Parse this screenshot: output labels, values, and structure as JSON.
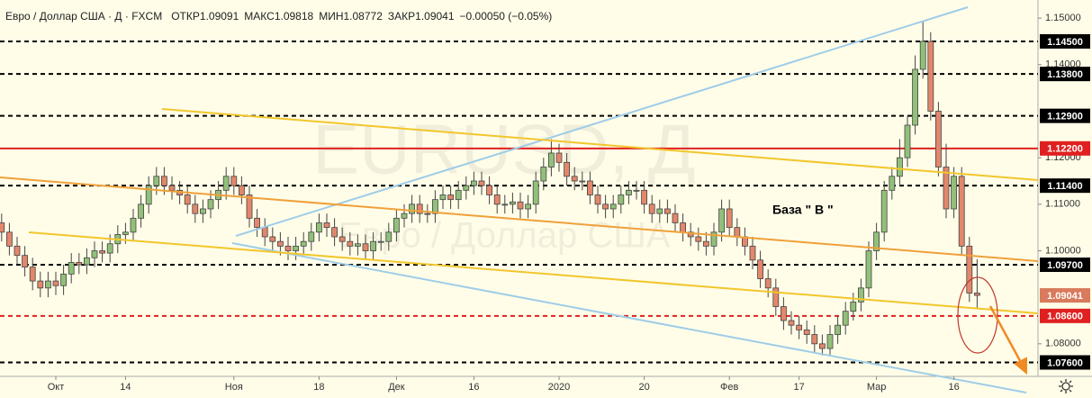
{
  "chart_data": {
    "type": "candlestick",
    "title": "Евро / Доллар США · Д · FXCM",
    "header": {
      "open_label": "ОТКР",
      "high_label": "МАКС",
      "low_label": "МИН",
      "close_label": "ЗАКР",
      "change": "−0.00050 (−0.05%)"
    },
    "watermark": "EURUSD, Д",
    "watermark_subtitle": "Евро / Доллар США",
    "annotation": "База \" В \"",
    "up_color": "#92c07a",
    "down_color": "#e2876c",
    "categories": [
      null,
      null,
      null,
      null,
      null,
      null,
      null,
      "Окт",
      null,
      null,
      null,
      null,
      null,
      null,
      null,
      null,
      "14",
      null,
      null,
      null,
      null,
      null,
      null,
      null,
      null,
      null,
      null,
      null,
      null,
      null,
      "Ноя",
      null,
      null,
      null,
      null,
      null,
      null,
      null,
      null,
      null,
      null,
      "18",
      null,
      null,
      null,
      null,
      null,
      null,
      null,
      null,
      null,
      "Дек",
      null,
      null,
      null,
      null,
      null,
      null,
      null,
      null,
      null,
      "16",
      null,
      null,
      null,
      null,
      null,
      null,
      null,
      null,
      null,
      null,
      "2020",
      null,
      null,
      null,
      null,
      null,
      null,
      null,
      null,
      null,
      null,
      "20",
      null,
      null,
      null,
      null,
      null,
      null,
      null,
      null,
      null,
      null,
      "Фев",
      null,
      null,
      null,
      null,
      null,
      null,
      null,
      null,
      "17",
      null,
      null,
      null,
      null,
      null,
      null,
      null,
      null,
      null,
      "Мар",
      null,
      null,
      null,
      null,
      null,
      null,
      null,
      null,
      null,
      "16",
      null,
      null,
      null
    ],
    "open": [
      1.106,
      1.104,
      1.101,
      1.099,
      1.0965,
      1.0935,
      1.092,
      1.0935,
      1.0925,
      1.095,
      1.0975,
      1.097,
      1.0985,
      1.1,
      1.0995,
      1.1015,
      1.1035,
      1.104,
      1.107,
      1.11,
      1.114,
      1.116,
      1.114,
      1.113,
      1.112,
      1.11,
      1.108,
      1.109,
      1.111,
      1.113,
      1.116,
      1.114,
      1.112,
      1.107,
      1.105,
      1.103,
      1.102,
      1.101,
      1.1,
      1.101,
      1.102,
      1.104,
      1.106,
      1.105,
      1.103,
      1.102,
      1.101,
      1.1015,
      1.1,
      1.102,
      1.102,
      1.104,
      1.107,
      1.108,
      1.11,
      1.108,
      1.108,
      1.111,
      1.112,
      1.111,
      1.113,
      1.114,
      1.115,
      1.114,
      1.112,
      1.11,
      1.11,
      1.1105,
      1.109,
      1.11,
      1.115,
      1.118,
      1.121,
      1.119,
      1.116,
      1.115,
      1.115,
      1.112,
      1.11,
      1.109,
      1.11,
      1.112,
      1.113,
      1.113,
      1.11,
      1.108,
      1.109,
      1.108,
      1.106,
      1.104,
      1.103,
      1.102,
      1.101,
      1.104,
      1.109,
      1.105,
      1.103,
      1.101,
      1.098,
      1.094,
      1.092,
      1.088,
      1.085,
      1.084,
      1.083,
      1.082,
      1.08,
      1.079,
      1.082,
      1.084,
      1.087,
      1.089,
      1.092,
      1.1,
      1.104,
      1.113,
      1.116,
      1.12,
      1.127,
      1.139,
      1.145,
      1.13,
      1.118,
      1.109,
      1.116,
      1.101,
      1.09091
    ],
    "high": [
      1.108,
      1.106,
      1.103,
      1.101,
      1.0985,
      1.0955,
      1.0955,
      1.0955,
      1.097,
      1.0995,
      1.0995,
      1.1005,
      1.102,
      1.102,
      1.1035,
      1.1055,
      1.106,
      1.109,
      1.112,
      1.116,
      1.118,
      1.118,
      1.116,
      1.115,
      1.114,
      1.112,
      1.111,
      1.113,
      1.115,
      1.118,
      1.118,
      1.116,
      1.114,
      1.109,
      1.107,
      1.105,
      1.104,
      1.103,
      1.103,
      1.104,
      1.106,
      1.108,
      1.108,
      1.107,
      1.105,
      1.104,
      1.1035,
      1.1035,
      1.104,
      1.104,
      1.106,
      1.109,
      1.11,
      1.112,
      1.112,
      1.11,
      1.113,
      1.114,
      1.114,
      1.115,
      1.116,
      1.117,
      1.117,
      1.116,
      1.114,
      1.112,
      1.1125,
      1.1125,
      1.112,
      1.117,
      1.12,
      1.124,
      1.123,
      1.121,
      1.118,
      1.117,
      1.117,
      1.114,
      1.112,
      1.112,
      1.114,
      1.115,
      1.115,
      1.115,
      1.112,
      1.111,
      1.111,
      1.11,
      1.108,
      1.106,
      1.105,
      1.104,
      1.106,
      1.111,
      1.111,
      1.107,
      1.105,
      1.103,
      1.1,
      1.096,
      1.094,
      1.09,
      1.087,
      1.086,
      1.085,
      1.084,
      1.082,
      1.084,
      1.086,
      1.089,
      1.091,
      1.094,
      1.102,
      1.106,
      1.115,
      1.118,
      1.124,
      1.129,
      1.142,
      1.1495,
      1.147,
      1.132,
      1.123,
      1.118,
      1.118,
      1.103,
      1.09818
    ],
    "low": [
      1.102,
      1.099,
      1.097,
      1.0945,
      1.0915,
      1.09,
      1.09,
      1.0905,
      1.0905,
      1.093,
      1.095,
      1.095,
      1.0965,
      1.0975,
      1.0975,
      1.0995,
      1.1015,
      1.102,
      1.105,
      1.108,
      1.112,
      1.112,
      1.111,
      1.11,
      1.108,
      1.106,
      1.106,
      1.107,
      1.109,
      1.111,
      1.112,
      1.11,
      1.105,
      1.103,
      1.101,
      1.1,
      1.099,
      1.098,
      1.098,
      1.099,
      1.1,
      1.102,
      1.103,
      1.101,
      1.1,
      1.099,
      1.099,
      1.098,
      1.098,
      1.1,
      1.1,
      1.102,
      1.105,
      1.106,
      1.106,
      1.106,
      1.106,
      1.109,
      1.109,
      1.109,
      1.111,
      1.112,
      1.112,
      1.11,
      1.108,
      1.108,
      1.108,
      1.107,
      1.107,
      1.108,
      1.113,
      1.116,
      1.117,
      1.114,
      1.113,
      1.113,
      1.11,
      1.108,
      1.107,
      1.107,
      1.108,
      1.11,
      1.111,
      1.108,
      1.106,
      1.106,
      1.106,
      1.104,
      1.102,
      1.101,
      1.1,
      1.099,
      1.099,
      1.102,
      1.103,
      1.101,
      1.099,
      1.096,
      1.092,
      1.09,
      1.086,
      1.083,
      1.082,
      1.081,
      1.08,
      1.078,
      1.0775,
      1.0775,
      1.08,
      1.082,
      1.085,
      1.087,
      1.09,
      1.098,
      1.102,
      1.111,
      1.114,
      1.118,
      1.125,
      1.137,
      1.128,
      1.116,
      1.107,
      1.107,
      1.099,
      1.089,
      1.08772
    ],
    "close": [
      1.104,
      1.101,
      1.099,
      1.0965,
      1.0935,
      1.092,
      1.0935,
      1.0925,
      1.095,
      1.0975,
      1.097,
      1.0985,
      1.1,
      1.0995,
      1.1015,
      1.1035,
      1.104,
      1.107,
      1.11,
      1.114,
      1.116,
      1.114,
      1.113,
      1.112,
      1.11,
      1.108,
      1.109,
      1.111,
      1.113,
      1.116,
      1.114,
      1.112,
      1.107,
      1.105,
      1.103,
      1.102,
      1.101,
      1.1,
      1.101,
      1.102,
      1.104,
      1.106,
      1.105,
      1.103,
      1.102,
      1.101,
      1.1015,
      1.1,
      1.102,
      1.102,
      1.104,
      1.107,
      1.108,
      1.11,
      1.108,
      1.108,
      1.111,
      1.112,
      1.111,
      1.113,
      1.114,
      1.115,
      1.114,
      1.112,
      1.11,
      1.11,
      1.1105,
      1.109,
      1.11,
      1.115,
      1.118,
      1.121,
      1.119,
      1.116,
      1.115,
      1.115,
      1.112,
      1.11,
      1.109,
      1.11,
      1.112,
      1.113,
      1.113,
      1.11,
      1.108,
      1.109,
      1.108,
      1.106,
      1.104,
      1.103,
      1.102,
      1.101,
      1.104,
      1.109,
      1.105,
      1.103,
      1.101,
      1.098,
      1.094,
      1.092,
      1.088,
      1.085,
      1.084,
      1.083,
      1.082,
      1.08,
      1.079,
      1.082,
      1.084,
      1.087,
      1.089,
      1.092,
      1.1,
      1.104,
      1.113,
      1.116,
      1.12,
      1.127,
      1.139,
      1.145,
      1.13,
      1.118,
      1.109,
      1.116,
      1.101,
      1.09091,
      1.09041
    ],
    "current_color": "#d97a5c",
    "ylim": [
      1.073,
      1.1539
    ],
    "yticks": [
      {
        "value": 1.15,
        "label": "1.15000"
      },
      {
        "value": 1.14,
        "label": "1.14000"
      },
      {
        "value": 1.12,
        "label": "1.12000"
      },
      {
        "value": 1.11,
        "label": "1.11000"
      },
      {
        "value": 1.1,
        "label": "1.10000"
      },
      {
        "value": 1.08,
        "label": "1.08000"
      }
    ],
    "levels": [
      {
        "value": 1.145,
        "label": "1.14500",
        "color": "#000000",
        "style": "dashed"
      },
      {
        "value": 1.138,
        "label": "1.13800",
        "color": "#000000",
        "style": "dashed"
      },
      {
        "value": 1.129,
        "label": "1.12900",
        "color": "#000000",
        "style": "dashed"
      },
      {
        "value": 1.122,
        "label": "1.12200",
        "color": "#e02020",
        "style": "solid"
      },
      {
        "value": 1.114,
        "label": "1.11400",
        "color": "#000000",
        "style": "dashed"
      },
      {
        "value": 1.097,
        "label": "1.09700",
        "color": "#000000",
        "style": "dashed"
      },
      {
        "value": 1.086,
        "label": "1.08600",
        "color": "#e02020",
        "style": "dashed"
      },
      {
        "value": 1.076,
        "label": "1.07600",
        "color": "#000000",
        "style": "dashed"
      }
    ]
  }
}
